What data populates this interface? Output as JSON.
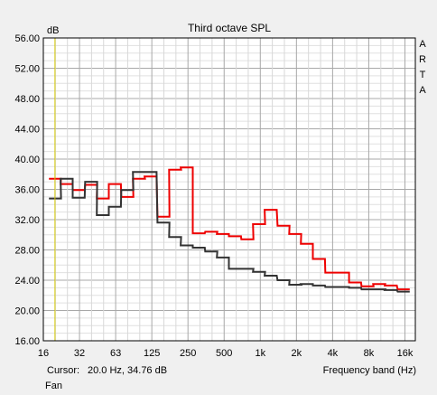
{
  "chart_data": {
    "type": "line",
    "title": "Third octave SPL",
    "ylabel": "dB",
    "xlabel": "Frequency band (Hz)",
    "watermark": "ARTA",
    "ylim": [
      16.0,
      56.0
    ],
    "y_ticks": [
      "16.00",
      "20.00",
      "24.00",
      "28.00",
      "32.00",
      "36.00",
      "40.00",
      "44.00",
      "48.00",
      "52.00",
      "56.00"
    ],
    "x_tick_labels": [
      "16",
      "32",
      "63",
      "125",
      "250",
      "500",
      "1k",
      "2k",
      "4k",
      "8k",
      "16k"
    ],
    "x_scale": "log2",
    "x_range_hz": [
      16,
      20000
    ],
    "grid": true,
    "cursor": {
      "hz": 20.0,
      "db": 34.76,
      "color": "#d4c800"
    },
    "series": [
      {
        "color": "#ee0000",
        "bands": [
          {
            "f": 20,
            "v": 37.4
          },
          {
            "f": 25,
            "v": 36.7
          },
          {
            "f": 31.5,
            "v": 35.9
          },
          {
            "f": 40,
            "v": 36.6
          },
          {
            "f": 50,
            "v": 34.8
          },
          {
            "f": 63,
            "v": 36.7
          },
          {
            "f": 80,
            "v": 35.0
          },
          {
            "f": 100,
            "v": 37.4
          },
          {
            "f": 125,
            "v": 37.7
          },
          {
            "f": 160,
            "v": 32.4
          },
          {
            "f": 200,
            "v": 38.6
          },
          {
            "f": 250,
            "v": 38.9
          },
          {
            "f": 315,
            "v": 30.2
          },
          {
            "f": 400,
            "v": 30.4
          },
          {
            "f": 500,
            "v": 30.1
          },
          {
            "f": 630,
            "v": 29.8
          },
          {
            "f": 800,
            "v": 29.4
          },
          {
            "f": 1000,
            "v": 31.4
          },
          {
            "f": 1250,
            "v": 33.3
          },
          {
            "f": 1600,
            "v": 31.2
          },
          {
            "f": 2000,
            "v": 30.1
          },
          {
            "f": 2500,
            "v": 28.8
          },
          {
            "f": 3150,
            "v": 26.8
          },
          {
            "f": 4000,
            "v": 25.0
          },
          {
            "f": 5000,
            "v": 25.0
          },
          {
            "f": 6300,
            "v": 23.7
          },
          {
            "f": 8000,
            "v": 23.2
          },
          {
            "f": 10000,
            "v": 23.5
          },
          {
            "f": 12500,
            "v": 23.3
          },
          {
            "f": 16000,
            "v": 22.8
          }
        ]
      },
      {
        "color": "#333333",
        "bands": [
          {
            "f": 20,
            "v": 34.8
          },
          {
            "f": 25,
            "v": 37.4
          },
          {
            "f": 31.5,
            "v": 34.9
          },
          {
            "f": 40,
            "v": 37.0
          },
          {
            "f": 50,
            "v": 32.6
          },
          {
            "f": 63,
            "v": 33.7
          },
          {
            "f": 80,
            "v": 35.9
          },
          {
            "f": 100,
            "v": 38.3
          },
          {
            "f": 125,
            "v": 38.3
          },
          {
            "f": 160,
            "v": 31.6
          },
          {
            "f": 200,
            "v": 29.7
          },
          {
            "f": 250,
            "v": 28.6
          },
          {
            "f": 315,
            "v": 28.3
          },
          {
            "f": 400,
            "v": 27.8
          },
          {
            "f": 500,
            "v": 27.0
          },
          {
            "f": 630,
            "v": 25.5
          },
          {
            "f": 800,
            "v": 25.5
          },
          {
            "f": 1000,
            "v": 25.1
          },
          {
            "f": 1250,
            "v": 24.6
          },
          {
            "f": 1600,
            "v": 24.0
          },
          {
            "f": 2000,
            "v": 23.4
          },
          {
            "f": 2500,
            "v": 23.5
          },
          {
            "f": 3150,
            "v": 23.3
          },
          {
            "f": 4000,
            "v": 23.1
          },
          {
            "f": 5000,
            "v": 23.1
          },
          {
            "f": 6300,
            "v": 23.0
          },
          {
            "f": 8000,
            "v": 22.8
          },
          {
            "f": 10000,
            "v": 22.8
          },
          {
            "f": 12500,
            "v": 22.7
          },
          {
            "f": 16000,
            "v": 22.5
          }
        ]
      }
    ]
  },
  "footer": {
    "cursor_label": "Cursor:",
    "cursor_readout": "20.0 Hz, 34.76 dB",
    "fan_label": "Fan"
  }
}
